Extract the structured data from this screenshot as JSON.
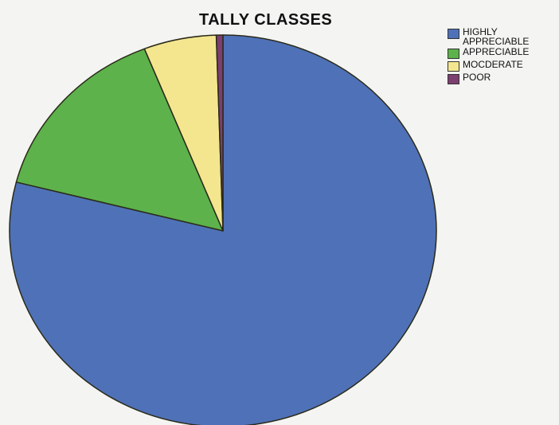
{
  "chart_data": {
    "type": "pie",
    "title": "TALLY CLASSES",
    "categories": [
      "HIGHLY APPRECIABLE",
      "APPRECIABLE",
      "MOCDERATE",
      "POOR"
    ],
    "values": [
      79,
      15,
      5.5,
      0.5
    ],
    "colors": [
      "#4f71b7",
      "#5db24b",
      "#f3e68f",
      "#7b3f70"
    ],
    "legend": "top-right"
  }
}
